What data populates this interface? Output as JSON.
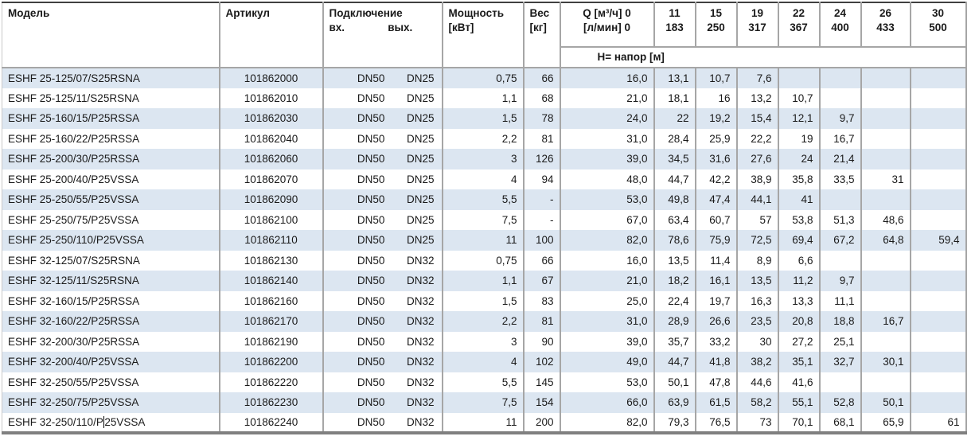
{
  "header": {
    "model": "Модель",
    "article": "Артикул",
    "connection": "Подключение",
    "inlet": "вх.",
    "outlet": "вых.",
    "power_line1": "Мощность",
    "power_line2": "[кВт]",
    "weight_line1": "Вес",
    "weight_line2": "[кг]",
    "q_line1": "Q [м³/ч] 0",
    "q_line2": "[л/мин] 0",
    "q_columns": [
      {
        "q": "11",
        "lmin": "183"
      },
      {
        "q": "15",
        "lmin": "250"
      },
      {
        "q": "19",
        "lmin": "317"
      },
      {
        "q": "22",
        "lmin": "367"
      },
      {
        "q": "24",
        "lmin": "400"
      },
      {
        "q": "26",
        "lmin": "433"
      },
      {
        "q": "30",
        "lmin": "500"
      }
    ],
    "head_subheader": "H= напор [м]"
  },
  "colors": {
    "band": "#dce6f1",
    "grid": "#a6a6a6",
    "top_border": "#404040",
    "bottom_border": "#808080",
    "text": "#1a1a1a"
  },
  "caret": {
    "row_index": 17,
    "after_text": "ESHF 32-250/110/P"
  },
  "rows": [
    {
      "model": "ESHF 25-125/07/S25RSNA",
      "article": "101862000",
      "inlet": "DN50",
      "outlet": "DN25",
      "power": "0,75",
      "weight": "66",
      "head": [
        "16,0",
        "13,1",
        "10,7",
        "7,6",
        "",
        "",
        "",
        ""
      ]
    },
    {
      "model": "ESHF 25-125/11/S25RSNA",
      "article": "101862010",
      "inlet": "DN50",
      "outlet": "DN25",
      "power": "1,1",
      "weight": "68",
      "head": [
        "21,0",
        "18,1",
        "16",
        "13,2",
        "10,7",
        "",
        "",
        ""
      ]
    },
    {
      "model": "ESHF 25-160/15/P25RSSA",
      "article": "101862030",
      "inlet": "DN50",
      "outlet": "DN25",
      "power": "1,5",
      "weight": "78",
      "head": [
        "24,0",
        "22",
        "19,2",
        "15,4",
        "12,1",
        "9,7",
        "",
        ""
      ]
    },
    {
      "model": "ESHF 25-160/22/P25RSSA",
      "article": "101862040",
      "inlet": "DN50",
      "outlet": "DN25",
      "power": "2,2",
      "weight": "81",
      "head": [
        "31,0",
        "28,4",
        "25,9",
        "22,2",
        "19",
        "16,7",
        "",
        ""
      ]
    },
    {
      "model": "ESHF 25-200/30/P25RSSA",
      "article": "101862060",
      "inlet": "DN50",
      "outlet": "DN25",
      "power": "3",
      "weight": "126",
      "head": [
        "39,0",
        "34,5",
        "31,6",
        "27,6",
        "24",
        "21,4",
        "",
        ""
      ]
    },
    {
      "model": "ESHF 25-200/40/P25VSSA",
      "article": "101862070",
      "inlet": "DN50",
      "outlet": "DN25",
      "power": "4",
      "weight": "94",
      "head": [
        "48,0",
        "44,7",
        "42,2",
        "38,9",
        "35,8",
        "33,5",
        "31",
        ""
      ]
    },
    {
      "model": "ESHF 25-250/55/P25VSSA",
      "article": "101862090",
      "inlet": "DN50",
      "outlet": "DN25",
      "power": "5,5",
      "weight": "-",
      "head": [
        "53,0",
        "49,8",
        "47,4",
        "44,1",
        "41",
        "",
        "",
        ""
      ]
    },
    {
      "model": "ESHF 25-250/75/P25VSSA",
      "article": "101862100",
      "inlet": "DN50",
      "outlet": "DN25",
      "power": "7,5",
      "weight": "-",
      "head": [
        "67,0",
        "63,4",
        "60,7",
        "57",
        "53,8",
        "51,3",
        "48,6",
        ""
      ]
    },
    {
      "model": "ESHF 25-250/110/P25VSSA",
      "article": "101862110",
      "inlet": "DN50",
      "outlet": "DN25",
      "power": "11",
      "weight": "100",
      "head": [
        "82,0",
        "78,6",
        "75,9",
        "72,5",
        "69,4",
        "67,2",
        "64,8",
        "59,4"
      ]
    },
    {
      "model": "ESHF 32-125/07/S25RSNA",
      "article": "101862130",
      "inlet": "DN50",
      "outlet": "DN32",
      "power": "0,75",
      "weight": "66",
      "head": [
        "16,0",
        "13,5",
        "11,4",
        "8,9",
        "6,6",
        "",
        "",
        ""
      ]
    },
    {
      "model": "ESHF 32-125/11/S25RSNA",
      "article": "101862140",
      "inlet": "DN50",
      "outlet": "DN32",
      "power": "1,1",
      "weight": "67",
      "head": [
        "21,0",
        "18,2",
        "16,1",
        "13,5",
        "11,2",
        "9,7",
        "",
        ""
      ]
    },
    {
      "model": "ESHF 32-160/15/P25RSSA",
      "article": "101862160",
      "inlet": "DN50",
      "outlet": "DN32",
      "power": "1,5",
      "weight": "83",
      "head": [
        "25,0",
        "22,4",
        "19,7",
        "16,3",
        "13,3",
        "11,1",
        "",
        ""
      ]
    },
    {
      "model": "ESHF 32-160/22/P25RSSA",
      "article": "101862170",
      "inlet": "DN50",
      "outlet": "DN32",
      "power": "2,2",
      "weight": "81",
      "head": [
        "31,0",
        "28,9",
        "26,6",
        "23,5",
        "20,8",
        "18,8",
        "16,7",
        ""
      ]
    },
    {
      "model": "ESHF 32-200/30/P25RSSA",
      "article": "101862190",
      "inlet": "DN50",
      "outlet": "DN32",
      "power": "3",
      "weight": "90",
      "head": [
        "39,0",
        "35,7",
        "33,2",
        "30",
        "27,2",
        "25,1",
        "",
        ""
      ]
    },
    {
      "model": "ESHF 32-200/40/P25VSSA",
      "article": "101862200",
      "inlet": "DN50",
      "outlet": "DN32",
      "power": "4",
      "weight": "102",
      "head": [
        "49,0",
        "44,7",
        "41,8",
        "38,2",
        "35,1",
        "32,7",
        "30,1",
        ""
      ]
    },
    {
      "model": "ESHF 32-250/55/P25VSSA",
      "article": "101862220",
      "inlet": "DN50",
      "outlet": "DN32",
      "power": "5,5",
      "weight": "145",
      "head": [
        "53,0",
        "50,1",
        "47,8",
        "44,6",
        "41,6",
        "",
        "",
        ""
      ]
    },
    {
      "model": "ESHF 32-250/75/P25VSSA",
      "article": "101862230",
      "inlet": "DN50",
      "outlet": "DN32",
      "power": "7,5",
      "weight": "154",
      "head": [
        "66,0",
        "63,9",
        "61,5",
        "58,2",
        "55,1",
        "52,8",
        "50,1",
        ""
      ]
    },
    {
      "model": "ESHF 32-250/110/P25VSSA",
      "article": "101862240",
      "inlet": "DN50",
      "outlet": "DN32",
      "power": "11",
      "weight": "200",
      "head": [
        "82,0",
        "79,3",
        "76,5",
        "73",
        "70,1",
        "68,1",
        "65,9",
        "61"
      ]
    }
  ]
}
